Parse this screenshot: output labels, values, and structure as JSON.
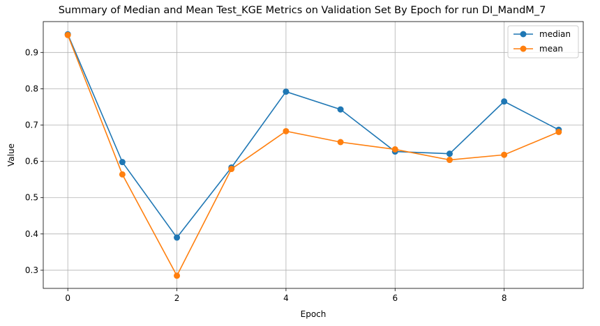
{
  "chart_data": {
    "type": "line",
    "title": "Summary of Median and Mean Test_KGE Metrics on Validation Set By Epoch for run DI_MandM_7",
    "xlabel": "Epoch",
    "ylabel": "Value",
    "x": [
      0,
      1,
      2,
      3,
      4,
      5,
      6,
      7,
      8,
      9
    ],
    "xlim": [
      -0.45,
      9.45
    ],
    "ylim": [
      0.25,
      0.985
    ],
    "xticks": [
      0,
      2,
      4,
      6,
      8
    ],
    "xtick_labels": [
      "0",
      "2",
      "4",
      "6",
      "8"
    ],
    "yticks": [
      0.3,
      0.4,
      0.5,
      0.6,
      0.7,
      0.8,
      0.9
    ],
    "ytick_labels": [
      "0.3",
      "0.4",
      "0.5",
      "0.6",
      "0.7",
      "0.8",
      "0.9"
    ],
    "grid": true,
    "legend_position": "top-right",
    "series": [
      {
        "name": "median",
        "color": "#1f77b4",
        "values": [
          0.95,
          0.598,
          0.39,
          0.583,
          0.792,
          0.743,
          0.627,
          0.621,
          0.765,
          0.687
        ]
      },
      {
        "name": "mean",
        "color": "#ff7f0e",
        "values": [
          0.948,
          0.564,
          0.285,
          0.579,
          0.683,
          0.653,
          0.633,
          0.604,
          0.618,
          0.681
        ]
      }
    ]
  }
}
